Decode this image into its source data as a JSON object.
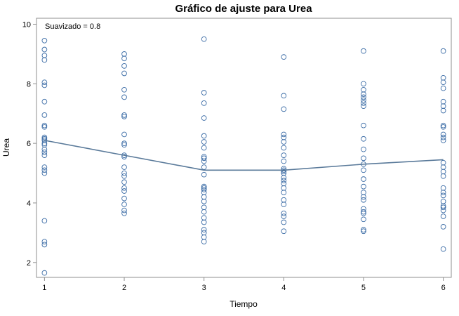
{
  "chart_data": {
    "type": "scatter",
    "title": "Gráfico de ajuste para Urea",
    "xlabel": "Tiempo",
    "ylabel": "Urea",
    "annotation": "Suavizado = 0.8",
    "xlim": [
      0.9,
      6.1
    ],
    "ylim": [
      1.5,
      10.2
    ],
    "x_ticks": [
      1,
      2,
      3,
      4,
      5,
      6
    ],
    "y_ticks": [
      2,
      4,
      6,
      8,
      10
    ],
    "grid": false,
    "legend": "none",
    "colors": {
      "points": "#3a6ba5",
      "line": "#5a7a9a",
      "frame": "#8f8f8f"
    },
    "series": [
      {
        "kind": "points",
        "points": [
          [
            1,
            9.45
          ],
          [
            1,
            9.15
          ],
          [
            1,
            8.95
          ],
          [
            1,
            8.8
          ],
          [
            1,
            8.05
          ],
          [
            1,
            7.95
          ],
          [
            1,
            7.4
          ],
          [
            1,
            6.95
          ],
          [
            1,
            6.6
          ],
          [
            1,
            6.55
          ],
          [
            1,
            6.2
          ],
          [
            1,
            6.15
          ],
          [
            1,
            6.1
          ],
          [
            1,
            6.0
          ],
          [
            1,
            5.95
          ],
          [
            1,
            5.8
          ],
          [
            1,
            5.7
          ],
          [
            1,
            5.6
          ],
          [
            1,
            5.2
          ],
          [
            1,
            5.1
          ],
          [
            1,
            5.0
          ],
          [
            1,
            3.4
          ],
          [
            1,
            2.7
          ],
          [
            1,
            2.6
          ],
          [
            1,
            1.65
          ],
          [
            2,
            9.0
          ],
          [
            2,
            8.85
          ],
          [
            2,
            8.6
          ],
          [
            2,
            8.35
          ],
          [
            2,
            7.8
          ],
          [
            2,
            7.55
          ],
          [
            2,
            6.95
          ],
          [
            2,
            6.9
          ],
          [
            2,
            6.3
          ],
          [
            2,
            6.0
          ],
          [
            2,
            5.95
          ],
          [
            2,
            5.6
          ],
          [
            2,
            5.55
          ],
          [
            2,
            5.2
          ],
          [
            2,
            5.0
          ],
          [
            2,
            4.9
          ],
          [
            2,
            4.7
          ],
          [
            2,
            4.5
          ],
          [
            2,
            4.4
          ],
          [
            2,
            4.15
          ],
          [
            2,
            3.95
          ],
          [
            2,
            3.75
          ],
          [
            2,
            3.65
          ],
          [
            3,
            9.5
          ],
          [
            3,
            7.7
          ],
          [
            3,
            7.35
          ],
          [
            3,
            6.85
          ],
          [
            3,
            6.25
          ],
          [
            3,
            6.05
          ],
          [
            3,
            5.85
          ],
          [
            3,
            5.55
          ],
          [
            3,
            5.5
          ],
          [
            3,
            5.4
          ],
          [
            3,
            5.2
          ],
          [
            3,
            4.95
          ],
          [
            3,
            4.55
          ],
          [
            3,
            4.5
          ],
          [
            3,
            4.45
          ],
          [
            3,
            4.35
          ],
          [
            3,
            4.2
          ],
          [
            3,
            4.05
          ],
          [
            3,
            3.85
          ],
          [
            3,
            3.7
          ],
          [
            3,
            3.5
          ],
          [
            3,
            3.35
          ],
          [
            3,
            3.1
          ],
          [
            3,
            3.0
          ],
          [
            3,
            2.85
          ],
          [
            3,
            2.7
          ],
          [
            4,
            8.9
          ],
          [
            4,
            7.6
          ],
          [
            4,
            7.15
          ],
          [
            4,
            6.3
          ],
          [
            4,
            6.2
          ],
          [
            4,
            6.05
          ],
          [
            4,
            5.85
          ],
          [
            4,
            5.6
          ],
          [
            4,
            5.4
          ],
          [
            4,
            5.15
          ],
          [
            4,
            5.1
          ],
          [
            4,
            5.05
          ],
          [
            4,
            5.0
          ],
          [
            4,
            4.85
          ],
          [
            4,
            4.75
          ],
          [
            4,
            4.65
          ],
          [
            4,
            4.5
          ],
          [
            4,
            4.35
          ],
          [
            4,
            4.1
          ],
          [
            4,
            3.95
          ],
          [
            4,
            3.65
          ],
          [
            4,
            3.55
          ],
          [
            4,
            3.35
          ],
          [
            4,
            3.05
          ],
          [
            5,
            9.1
          ],
          [
            5,
            8.0
          ],
          [
            5,
            7.8
          ],
          [
            5,
            7.65
          ],
          [
            5,
            7.55
          ],
          [
            5,
            7.45
          ],
          [
            5,
            7.35
          ],
          [
            5,
            7.25
          ],
          [
            5,
            6.6
          ],
          [
            5,
            6.15
          ],
          [
            5,
            5.8
          ],
          [
            5,
            5.5
          ],
          [
            5,
            5.3
          ],
          [
            5,
            5.1
          ],
          [
            5,
            4.8
          ],
          [
            5,
            4.55
          ],
          [
            5,
            4.35
          ],
          [
            5,
            4.2
          ],
          [
            5,
            4.1
          ],
          [
            5,
            3.8
          ],
          [
            5,
            3.7
          ],
          [
            5,
            3.65
          ],
          [
            5,
            3.45
          ],
          [
            5,
            3.1
          ],
          [
            5,
            3.05
          ],
          [
            6,
            9.1
          ],
          [
            6,
            8.2
          ],
          [
            6,
            8.05
          ],
          [
            6,
            7.85
          ],
          [
            6,
            7.4
          ],
          [
            6,
            7.25
          ],
          [
            6,
            7.1
          ],
          [
            6,
            6.6
          ],
          [
            6,
            6.55
          ],
          [
            6,
            6.3
          ],
          [
            6,
            6.2
          ],
          [
            6,
            6.1
          ],
          [
            6,
            5.35
          ],
          [
            6,
            5.2
          ],
          [
            6,
            5.05
          ],
          [
            6,
            4.9
          ],
          [
            6,
            4.5
          ],
          [
            6,
            4.35
          ],
          [
            6,
            4.25
          ],
          [
            6,
            4.05
          ],
          [
            6,
            3.9
          ],
          [
            6,
            3.85
          ],
          [
            6,
            3.75
          ],
          [
            6,
            3.55
          ],
          [
            6,
            3.2
          ],
          [
            6,
            2.45
          ]
        ]
      },
      {
        "kind": "line",
        "x": [
          1,
          2,
          3,
          4,
          5,
          6
        ],
        "y": [
          6.1,
          5.6,
          5.1,
          5.1,
          5.3,
          5.45
        ]
      }
    ]
  }
}
